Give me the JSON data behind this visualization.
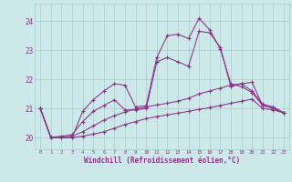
{
  "xlabel": "Windchill (Refroidissement éolien,°C)",
  "background_color": "#cce8e8",
  "grid_color": "#aacccc",
  "line_color": "#883388",
  "xlim": [
    -0.5,
    23.5
  ],
  "ylim": [
    19.6,
    24.6
  ],
  "yticks": [
    20,
    21,
    22,
    23,
    24
  ],
  "xticks": [
    0,
    1,
    2,
    3,
    4,
    5,
    6,
    7,
    8,
    9,
    10,
    11,
    12,
    13,
    14,
    15,
    16,
    17,
    18,
    19,
    20,
    21,
    22,
    23
  ],
  "series": [
    [
      21.0,
      20.0,
      20.0,
      20.0,
      20.9,
      21.3,
      21.6,
      21.85,
      21.8,
      21.05,
      21.1,
      22.75,
      23.5,
      23.55,
      23.4,
      24.1,
      23.7,
      23.05,
      21.85,
      21.75,
      21.55,
      21.1,
      21.0,
      20.85
    ],
    [
      21.0,
      20.0,
      20.05,
      20.1,
      20.55,
      20.9,
      21.1,
      21.3,
      20.95,
      20.95,
      21.0,
      22.6,
      22.75,
      22.6,
      22.45,
      23.65,
      23.6,
      23.1,
      21.75,
      21.85,
      21.6,
      21.15,
      21.05,
      20.85
    ],
    [
      21.0,
      20.0,
      20.0,
      20.05,
      20.2,
      20.4,
      20.6,
      20.75,
      20.88,
      20.98,
      21.05,
      21.12,
      21.18,
      21.25,
      21.35,
      21.5,
      21.6,
      21.7,
      21.8,
      21.85,
      21.9,
      21.1,
      21.05,
      20.85
    ],
    [
      21.0,
      20.0,
      20.0,
      20.0,
      20.05,
      20.12,
      20.2,
      20.32,
      20.45,
      20.55,
      20.65,
      20.72,
      20.78,
      20.84,
      20.9,
      20.97,
      21.03,
      21.1,
      21.18,
      21.25,
      21.32,
      21.0,
      20.95,
      20.85
    ]
  ]
}
